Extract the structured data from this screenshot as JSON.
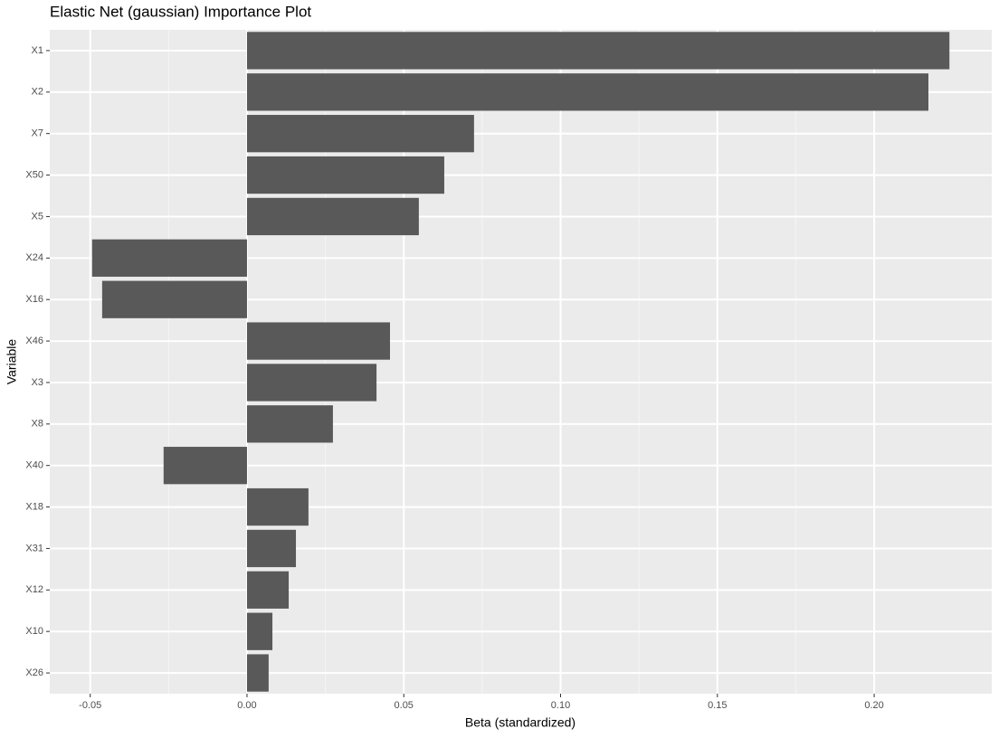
{
  "chart_data": {
    "type": "bar",
    "orientation": "horizontal",
    "title": "Elastic Net (gaussian) Importance Plot",
    "x_label": "Beta (standardized)",
    "y_label": "Variable",
    "categories": [
      "X1",
      "X2",
      "X7",
      "X50",
      "X5",
      "X24",
      "X16",
      "X46",
      "X3",
      "X8",
      "X40",
      "X18",
      "X31",
      "X12",
      "X10",
      "X26"
    ],
    "values": [
      0.224,
      0.2173,
      0.0724,
      0.0629,
      0.0548,
      -0.0494,
      -0.0462,
      0.0456,
      0.0413,
      0.0274,
      -0.0266,
      0.0196,
      0.0156,
      0.0133,
      0.0081,
      0.0069
    ],
    "color": "#595959",
    "xlim": [
      -0.0629,
      0.2375
    ],
    "xticks": [
      {
        "value": -0.05,
        "label": "-0.05"
      },
      {
        "value": 0,
        "label": "0.00"
      },
      {
        "value": 0.05,
        "label": "0.05"
      },
      {
        "value": 0.1,
        "label": "0.10"
      },
      {
        "value": 0.15,
        "label": "0.15"
      },
      {
        "value": 0.2,
        "label": "0.20"
      }
    ],
    "grid": true
  }
}
